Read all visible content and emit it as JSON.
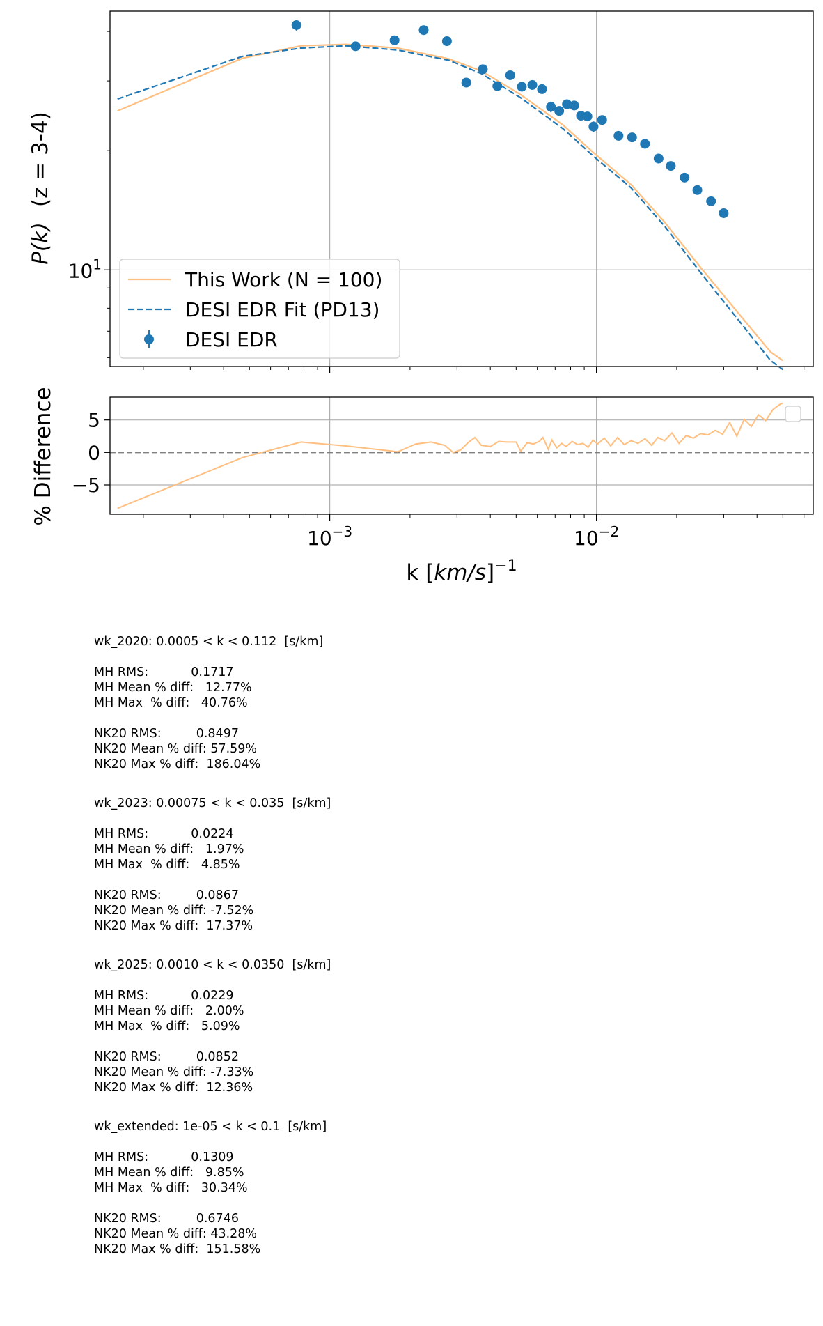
{
  "chart_data": [
    {
      "type": "line",
      "ylabel_math": "P(k)",
      "ylabel_suffix": "(z = 3-4)",
      "x_scale": "log",
      "y_scale": "log",
      "xlim": [
        0.00015,
        0.065
      ],
      "ylim": [
        5.7,
        45
      ],
      "grid": true,
      "legend_placement": "lower-left",
      "y_tick_labels": [
        {
          "value": 10,
          "base": "10",
          "exp": "1"
        }
      ],
      "series": [
        {
          "name": "This Work (N = 100)",
          "style": "solid",
          "color": "#ffbf80",
          "x": [
            0.00016,
            0.00047,
            0.00078,
            0.00115,
            0.0018,
            0.0028,
            0.0037,
            0.0052,
            0.0075,
            0.0098,
            0.0135,
            0.018,
            0.025,
            0.035,
            0.045,
            0.05
          ],
          "y": [
            25.2,
            34.2,
            36.8,
            37.1,
            36.3,
            34.1,
            31.8,
            27.7,
            23.2,
            19.7,
            16.4,
            13.2,
            10.0,
            7.6,
            6.2,
            5.9
          ]
        },
        {
          "name": "DESI EDR Fit (PD13)",
          "style": "dashed",
          "color": "#1f77b4",
          "x": [
            0.00016,
            0.00047,
            0.00078,
            0.00115,
            0.0018,
            0.0028,
            0.0037,
            0.0052,
            0.0075,
            0.0098,
            0.0135,
            0.018,
            0.025,
            0.035,
            0.045,
            0.05
          ],
          "y": [
            27.0,
            34.6,
            36.3,
            36.8,
            35.9,
            33.8,
            31.3,
            27.2,
            22.7,
            19.3,
            16.1,
            12.9,
            9.7,
            7.3,
            5.9,
            5.6
          ]
        },
        {
          "name": "DESI EDR",
          "style": "points",
          "color": "#1f77b4",
          "x": [
            0.00075,
            0.00125,
            0.00175,
            0.00225,
            0.00275,
            0.00325,
            0.00375,
            0.00425,
            0.00475,
            0.00525,
            0.00575,
            0.00625,
            0.00675,
            0.00725,
            0.00775,
            0.00825,
            0.00875,
            0.00925,
            0.00975,
            0.0105,
            0.0121,
            0.0136,
            0.0152,
            0.0171,
            0.019,
            0.0214,
            0.0239,
            0.0269,
            0.03
          ],
          "y": [
            41.5,
            36.7,
            38.0,
            40.3,
            37.8,
            29.7,
            32.1,
            29.1,
            31.0,
            29.0,
            29.3,
            28.6,
            25.8,
            25.2,
            26.2,
            26.0,
            24.5,
            24.4,
            23.0,
            23.9,
            21.8,
            21.6,
            20.8,
            19.1,
            18.3,
            17.1,
            15.9,
            14.9,
            13.9
          ],
          "yerr": [
            1.3,
            0.8,
            0.6,
            0.6,
            0.6,
            0.5,
            0.5,
            0.5,
            0.6,
            0.7,
            0.5,
            0.5,
            0.8,
            0.6,
            0.5,
            0.6,
            0.6,
            0.6,
            0.7,
            0.5,
            0.4,
            0.4,
            0.4,
            0.3,
            0.3,
            0.3,
            0.3,
            0.3,
            0.2
          ]
        }
      ]
    },
    {
      "type": "line",
      "ylabel": "% Difference",
      "xlabel_prefix": "k [",
      "xlabel_math": "km/s",
      "xlabel_suffix": "]",
      "xlabel_exp": "−1",
      "x_scale": "log",
      "ylim": [
        -9.5,
        8.5
      ],
      "grid": true,
      "y_ticks": [
        {
          "value": 5,
          "label": "5"
        },
        {
          "value": 0,
          "label": "0"
        },
        {
          "value": -5,
          "label": "−5"
        }
      ],
      "x_tick_labels": [
        {
          "value": 0.001,
          "base": "10",
          "exp": "−3"
        },
        {
          "value": 0.01,
          "base": "10",
          "exp": "−2"
        }
      ],
      "reference_line": {
        "y": 0,
        "style": "dashed",
        "color": "#808080"
      },
      "legend_placement": "upper-right",
      "series": [
        {
          "color": "#ffbf80",
          "x": [
            0.00016,
            0.00047,
            0.00078,
            0.00115,
            0.0018,
            0.0021,
            0.0024,
            0.0027,
            0.0029,
            0.0031,
            0.0033,
            0.0035,
            0.0037,
            0.004,
            0.0043,
            0.0046,
            0.005,
            0.0052,
            0.0055,
            0.0058,
            0.0061,
            0.0063,
            0.0066,
            0.0068,
            0.0071,
            0.0074,
            0.0077,
            0.0081,
            0.0085,
            0.0089,
            0.0093,
            0.0097,
            0.0101,
            0.0107,
            0.0113,
            0.012,
            0.0127,
            0.0135,
            0.0143,
            0.0152,
            0.0161,
            0.017,
            0.018,
            0.0192,
            0.0204,
            0.0217,
            0.0231,
            0.0246,
            0.0262,
            0.0279,
            0.0297,
            0.0316,
            0.0336,
            0.0358,
            0.0381,
            0.0405,
            0.0431,
            0.0459,
            0.0488,
            0.05
          ],
          "y": [
            -8.6,
            -0.8,
            1.6,
            1.0,
            0.1,
            1.3,
            1.6,
            1.1,
            0.0,
            0.4,
            1.5,
            2.3,
            1.1,
            0.9,
            1.7,
            1.6,
            1.6,
            0.2,
            1.5,
            1.3,
            1.7,
            2.3,
            0.5,
            1.9,
            0.7,
            1.4,
            0.9,
            1.7,
            1.2,
            1.4,
            0.8,
            1.9,
            1.3,
            2.2,
            1.0,
            2.3,
            1.2,
            1.8,
            1.4,
            2.1,
            1.1,
            2.3,
            1.8,
            3.0,
            1.4,
            2.6,
            2.2,
            2.9,
            2.7,
            3.4,
            2.8,
            4.6,
            2.5,
            5.1,
            4.0,
            5.8,
            4.9,
            6.6,
            7.4,
            7.6
          ]
        }
      ]
    }
  ],
  "stats": [
    {
      "lines": [
        "wk_2020: 0.0005 < k < 0.112  [s/km]",
        "",
        "MH RMS:           0.1717",
        "MH Mean % diff:   12.77%",
        "MH Max  % diff:   40.76%",
        "",
        "NK20 RMS:         0.8497",
        "NK20 Mean % diff: 57.59%",
        "NK20 Max % diff:  186.04%"
      ]
    },
    {
      "lines": [
        "wk_2023: 0.00075 < k < 0.035  [s/km]",
        "",
        "MH RMS:           0.0224",
        "MH Mean % diff:   1.97%",
        "MH Max  % diff:   4.85%",
        "",
        "NK20 RMS:         0.0867",
        "NK20 Mean % diff: -7.52%",
        "NK20 Max % diff:  17.37%"
      ]
    },
    {
      "lines": [
        "wk_2025: 0.0010 < k < 0.0350  [s/km]",
        "",
        "MH RMS:           0.0229",
        "MH Mean % diff:   2.00%",
        "MH Max  % diff:   5.09%",
        "",
        "NK20 RMS:         0.0852",
        "NK20 Mean % diff: -7.33%",
        "NK20 Max % diff:  12.36%"
      ]
    },
    {
      "lines": [
        "wk_extended: 1e-05 < k < 0.1  [s/km]",
        "",
        "MH RMS:           0.1309",
        "MH Mean % diff:   9.85%",
        "MH Max  % diff:   30.34%",
        "",
        "NK20 RMS:         0.6746",
        "NK20 Mean % diff: 43.28%",
        "NK20 Max % diff:  151.58%"
      ]
    }
  ]
}
